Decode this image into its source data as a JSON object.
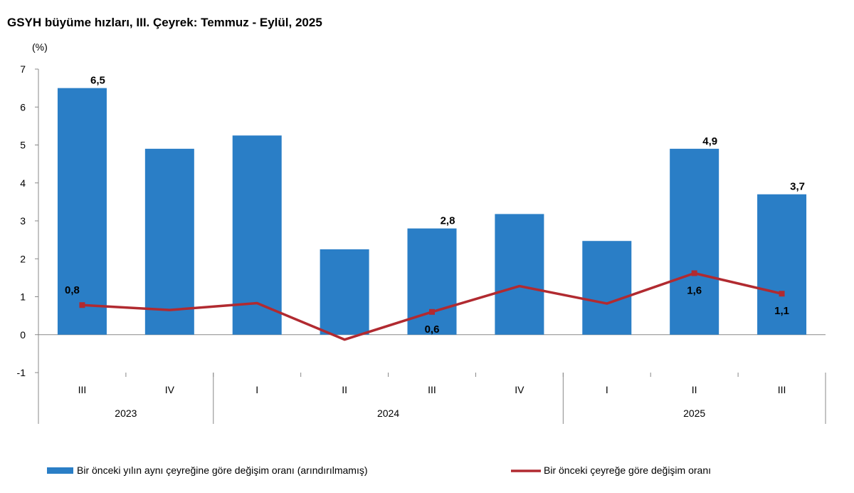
{
  "chart_data": {
    "type": "bar+line",
    "title": "GSYH büyüme hızları, III. Çeyrek: Temmuz - Eylül, 2025",
    "ylabel": "(%)",
    "ylim": [
      -1,
      7
    ],
    "yticks": [
      -1,
      0,
      1,
      2,
      3,
      4,
      5,
      6,
      7
    ],
    "grid": false,
    "legend_position": "bottom",
    "categories": [
      "III",
      "IV",
      "I",
      "II",
      "III",
      "IV",
      "I",
      "II",
      "III"
    ],
    "years": [
      {
        "label": "2023",
        "start": 0,
        "end": 1
      },
      {
        "label": "2024",
        "start": 2,
        "end": 5
      },
      {
        "label": "2025",
        "start": 6,
        "end": 8
      }
    ],
    "series": [
      {
        "name": "Bir önceki yılın aynı çeyreğine göre değişim oranı (arındırılmamış)",
        "type": "bar",
        "color": "#2a7ec6",
        "values": [
          6.5,
          4.9,
          5.25,
          2.25,
          2.8,
          3.18,
          2.47,
          4.9,
          3.7
        ],
        "labels": [
          "6,5",
          "",
          "",
          "",
          "2,8",
          "",
          "",
          "4,9",
          "3,7"
        ]
      },
      {
        "name": "Bir önceki çeyreğe göre değişim oranı",
        "type": "line",
        "color": "#b12a30",
        "values": [
          0.78,
          0.65,
          0.83,
          -0.13,
          0.6,
          1.28,
          0.82,
          1.62,
          1.08
        ],
        "markers": [
          true,
          false,
          false,
          false,
          true,
          false,
          false,
          true,
          true
        ],
        "labels": [
          "0,8",
          "",
          "",
          "",
          "0,6",
          "",
          "",
          "1,6",
          "1,1"
        ],
        "label_positions": [
          "above",
          "",
          "",
          "",
          "below",
          "",
          "",
          "below",
          "below"
        ]
      }
    ]
  }
}
